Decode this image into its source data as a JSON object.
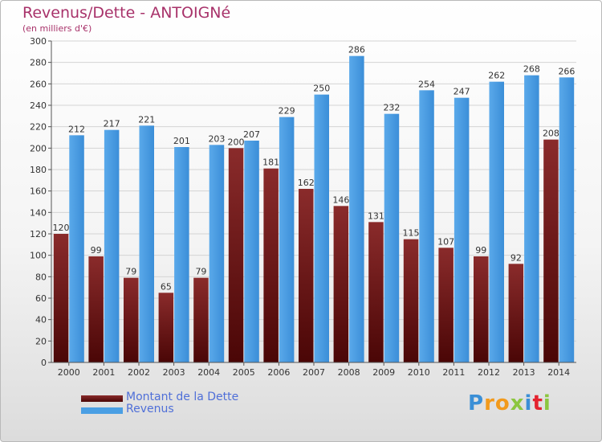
{
  "header": {
    "title": "Revenus/Dette - ANTOIGNé",
    "subtitle": "(en milliers d'€)"
  },
  "chart_data": {
    "type": "bar",
    "categories": [
      "2000",
      "2001",
      "2002",
      "2003",
      "2004",
      "2005",
      "2006",
      "2007",
      "2008",
      "2009",
      "2010",
      "2011",
      "2012",
      "2013",
      "2014"
    ],
    "series": [
      {
        "name": "Montant de la Dette",
        "color": "#6b1a1a",
        "values": [
          120,
          99,
          79,
          65,
          79,
          200,
          181,
          162,
          146,
          131,
          115,
          107,
          99,
          92,
          208
        ]
      },
      {
        "name": "Revenus",
        "color": "#3d97e0",
        "values": [
          212,
          217,
          221,
          201,
          203,
          207,
          229,
          250,
          286,
          232,
          254,
          247,
          262,
          268,
          266
        ]
      }
    ],
    "ylim": [
      0,
      300
    ],
    "yticks": [
      0,
      20,
      40,
      60,
      80,
      100,
      120,
      140,
      160,
      180,
      200,
      220,
      240,
      260,
      280,
      300
    ],
    "grid": true,
    "legend_position": "bottom-left"
  },
  "logo": {
    "letters": [
      {
        "char": "P",
        "color": "#3b8fd6"
      },
      {
        "char": "r",
        "color": "#f29a1c"
      },
      {
        "char": "o",
        "color": "#f29a1c"
      },
      {
        "char": "x",
        "color": "#8cc63f"
      },
      {
        "char": "i",
        "color": "#3b8fd6"
      },
      {
        "char": "t",
        "color": "#e4232f"
      },
      {
        "char": "i",
        "color": "#8cc63f"
      }
    ]
  }
}
